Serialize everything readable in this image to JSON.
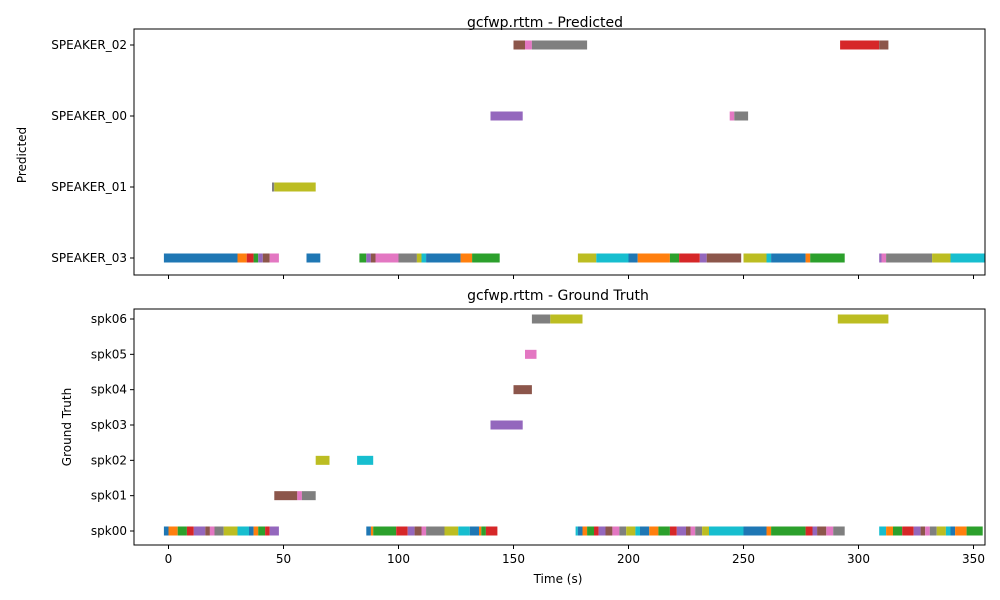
{
  "chart_data": [
    {
      "type": "timeline",
      "title": "gcfwp.rttm - Predicted",
      "ylabel": "Predicted",
      "xlabel": "",
      "xlim": [
        -15,
        355
      ],
      "xticks": [
        0,
        50,
        100,
        150,
        200,
        250,
        300,
        350
      ],
      "show_xtick_labels": false,
      "categories": [
        "SPEAKER_03",
        "SPEAKER_01",
        "SPEAKER_00",
        "SPEAKER_02"
      ],
      "segments": [
        {
          "speaker": "SPEAKER_03",
          "start": -2,
          "end": 30,
          "color": "#1f77b4"
        },
        {
          "speaker": "SPEAKER_03",
          "start": 30,
          "end": 34,
          "color": "#ff7f0e"
        },
        {
          "speaker": "SPEAKER_03",
          "start": 34,
          "end": 37,
          "color": "#d62728"
        },
        {
          "speaker": "SPEAKER_03",
          "start": 37,
          "end": 39,
          "color": "#2ca02c"
        },
        {
          "speaker": "SPEAKER_03",
          "start": 39,
          "end": 41,
          "color": "#9467bd"
        },
        {
          "speaker": "SPEAKER_03",
          "start": 41,
          "end": 44,
          "color": "#8c564b"
        },
        {
          "speaker": "SPEAKER_03",
          "start": 44,
          "end": 48,
          "color": "#e377c2"
        },
        {
          "speaker": "SPEAKER_03",
          "start": 60,
          "end": 66,
          "color": "#1f77b4"
        },
        {
          "speaker": "SPEAKER_03",
          "start": 83,
          "end": 86,
          "color": "#2ca02c"
        },
        {
          "speaker": "SPEAKER_03",
          "start": 86,
          "end": 88,
          "color": "#9467bd"
        },
        {
          "speaker": "SPEAKER_03",
          "start": 88,
          "end": 90,
          "color": "#8c564b"
        },
        {
          "speaker": "SPEAKER_03",
          "start": 90,
          "end": 100,
          "color": "#e377c2"
        },
        {
          "speaker": "SPEAKER_03",
          "start": 100,
          "end": 108,
          "color": "#7f7f7f"
        },
        {
          "speaker": "SPEAKER_03",
          "start": 108,
          "end": 110,
          "color": "#bcbd22"
        },
        {
          "speaker": "SPEAKER_03",
          "start": 110,
          "end": 112,
          "color": "#17becf"
        },
        {
          "speaker": "SPEAKER_03",
          "start": 112,
          "end": 127,
          "color": "#1f77b4"
        },
        {
          "speaker": "SPEAKER_03",
          "start": 127,
          "end": 132,
          "color": "#ff7f0e"
        },
        {
          "speaker": "SPEAKER_03",
          "start": 132,
          "end": 144,
          "color": "#2ca02c"
        },
        {
          "speaker": "SPEAKER_03",
          "start": 178,
          "end": 186,
          "color": "#bcbd22"
        },
        {
          "speaker": "SPEAKER_03",
          "start": 186,
          "end": 200,
          "color": "#17becf"
        },
        {
          "speaker": "SPEAKER_03",
          "start": 200,
          "end": 204,
          "color": "#1f77b4"
        },
        {
          "speaker": "SPEAKER_03",
          "start": 204,
          "end": 218,
          "color": "#ff7f0e"
        },
        {
          "speaker": "SPEAKER_03",
          "start": 218,
          "end": 222,
          "color": "#2ca02c"
        },
        {
          "speaker": "SPEAKER_03",
          "start": 222,
          "end": 231,
          "color": "#d62728"
        },
        {
          "speaker": "SPEAKER_03",
          "start": 231,
          "end": 234,
          "color": "#9467bd"
        },
        {
          "speaker": "SPEAKER_03",
          "start": 234,
          "end": 249,
          "color": "#8c564b"
        },
        {
          "speaker": "SPEAKER_03",
          "start": 250,
          "end": 260,
          "color": "#bcbd22"
        },
        {
          "speaker": "SPEAKER_03",
          "start": 260,
          "end": 262,
          "color": "#17becf"
        },
        {
          "speaker": "SPEAKER_03",
          "start": 262,
          "end": 277,
          "color": "#1f77b4"
        },
        {
          "speaker": "SPEAKER_03",
          "start": 277,
          "end": 279,
          "color": "#ff7f0e"
        },
        {
          "speaker": "SPEAKER_03",
          "start": 279,
          "end": 294,
          "color": "#2ca02c"
        },
        {
          "speaker": "SPEAKER_03",
          "start": 309,
          "end": 310,
          "color": "#9467bd"
        },
        {
          "speaker": "SPEAKER_03",
          "start": 310,
          "end": 312,
          "color": "#e377c2"
        },
        {
          "speaker": "SPEAKER_03",
          "start": 312,
          "end": 332,
          "color": "#7f7f7f"
        },
        {
          "speaker": "SPEAKER_03",
          "start": 332,
          "end": 340,
          "color": "#bcbd22"
        },
        {
          "speaker": "SPEAKER_03",
          "start": 340,
          "end": 355,
          "color": "#17becf"
        },
        {
          "speaker": "SPEAKER_01",
          "start": 45,
          "end": 46,
          "color": "#7f7f7f"
        },
        {
          "speaker": "SPEAKER_01",
          "start": 46,
          "end": 64,
          "color": "#bcbd22"
        },
        {
          "speaker": "SPEAKER_00",
          "start": 140,
          "end": 154,
          "color": "#9467bd"
        },
        {
          "speaker": "SPEAKER_00",
          "start": 244,
          "end": 246,
          "color": "#e377c2"
        },
        {
          "speaker": "SPEAKER_00",
          "start": 246,
          "end": 252,
          "color": "#7f7f7f"
        },
        {
          "speaker": "SPEAKER_02",
          "start": 150,
          "end": 155,
          "color": "#8c564b"
        },
        {
          "speaker": "SPEAKER_02",
          "start": 155,
          "end": 158,
          "color": "#e377c2"
        },
        {
          "speaker": "SPEAKER_02",
          "start": 158,
          "end": 182,
          "color": "#7f7f7f"
        },
        {
          "speaker": "SPEAKER_02",
          "start": 292,
          "end": 309,
          "color": "#d62728"
        },
        {
          "speaker": "SPEAKER_02",
          "start": 309,
          "end": 313,
          "color": "#8c564b"
        }
      ]
    },
    {
      "type": "timeline",
      "title": "gcfwp.rttm - Ground Truth",
      "ylabel": "Ground Truth",
      "xlabel": "Time (s)",
      "xlim": [
        -15,
        355
      ],
      "xticks": [
        0,
        50,
        100,
        150,
        200,
        250,
        300,
        350
      ],
      "show_xtick_labels": true,
      "categories": [
        "spk00",
        "spk01",
        "spk02",
        "spk03",
        "spk04",
        "spk05",
        "spk06"
      ],
      "segments": [
        {
          "speaker": "spk00",
          "start": -2,
          "end": 0,
          "color": "#1f77b4"
        },
        {
          "speaker": "spk00",
          "start": 0,
          "end": 4,
          "color": "#ff7f0e"
        },
        {
          "speaker": "spk00",
          "start": 4,
          "end": 8,
          "color": "#2ca02c"
        },
        {
          "speaker": "spk00",
          "start": 8,
          "end": 11,
          "color": "#d62728"
        },
        {
          "speaker": "spk00",
          "start": 11,
          "end": 16,
          "color": "#9467bd"
        },
        {
          "speaker": "spk00",
          "start": 16,
          "end": 18,
          "color": "#8c564b"
        },
        {
          "speaker": "spk00",
          "start": 18,
          "end": 20,
          "color": "#e377c2"
        },
        {
          "speaker": "spk00",
          "start": 20,
          "end": 24,
          "color": "#7f7f7f"
        },
        {
          "speaker": "spk00",
          "start": 24,
          "end": 30,
          "color": "#bcbd22"
        },
        {
          "speaker": "spk00",
          "start": 30,
          "end": 35,
          "color": "#17becf"
        },
        {
          "speaker": "spk00",
          "start": 35,
          "end": 37,
          "color": "#1f77b4"
        },
        {
          "speaker": "spk00",
          "start": 37,
          "end": 39,
          "color": "#ff7f0e"
        },
        {
          "speaker": "spk00",
          "start": 39,
          "end": 42,
          "color": "#2ca02c"
        },
        {
          "speaker": "spk00",
          "start": 42,
          "end": 44,
          "color": "#d62728"
        },
        {
          "speaker": "spk00",
          "start": 44,
          "end": 48,
          "color": "#9467bd"
        },
        {
          "speaker": "spk00",
          "start": 86,
          "end": 88,
          "color": "#1f77b4"
        },
        {
          "speaker": "spk00",
          "start": 88,
          "end": 89,
          "color": "#ff7f0e"
        },
        {
          "speaker": "spk00",
          "start": 89,
          "end": 99,
          "color": "#2ca02c"
        },
        {
          "speaker": "spk00",
          "start": 99,
          "end": 104,
          "color": "#d62728"
        },
        {
          "speaker": "spk00",
          "start": 104,
          "end": 107,
          "color": "#9467bd"
        },
        {
          "speaker": "spk00",
          "start": 107,
          "end": 110,
          "color": "#8c564b"
        },
        {
          "speaker": "spk00",
          "start": 110,
          "end": 112,
          "color": "#e377c2"
        },
        {
          "speaker": "spk00",
          "start": 112,
          "end": 120,
          "color": "#7f7f7f"
        },
        {
          "speaker": "spk00",
          "start": 120,
          "end": 126,
          "color": "#bcbd22"
        },
        {
          "speaker": "spk00",
          "start": 126,
          "end": 131,
          "color": "#17becf"
        },
        {
          "speaker": "spk00",
          "start": 131,
          "end": 135,
          "color": "#1f77b4"
        },
        {
          "speaker": "spk00",
          "start": 135,
          "end": 136,
          "color": "#ff7f0e"
        },
        {
          "speaker": "spk00",
          "start": 136,
          "end": 138,
          "color": "#2ca02c"
        },
        {
          "speaker": "spk00",
          "start": 138,
          "end": 143,
          "color": "#d62728"
        },
        {
          "speaker": "spk00",
          "start": 177,
          "end": 178,
          "color": "#17becf"
        },
        {
          "speaker": "spk00",
          "start": 178,
          "end": 180,
          "color": "#1f77b4"
        },
        {
          "speaker": "spk00",
          "start": 180,
          "end": 182,
          "color": "#ff7f0e"
        },
        {
          "speaker": "spk00",
          "start": 182,
          "end": 185,
          "color": "#2ca02c"
        },
        {
          "speaker": "spk00",
          "start": 185,
          "end": 187,
          "color": "#d62728"
        },
        {
          "speaker": "spk00",
          "start": 187,
          "end": 190,
          "color": "#9467bd"
        },
        {
          "speaker": "spk00",
          "start": 190,
          "end": 193,
          "color": "#8c564b"
        },
        {
          "speaker": "spk00",
          "start": 193,
          "end": 196,
          "color": "#e377c2"
        },
        {
          "speaker": "spk00",
          "start": 196,
          "end": 199,
          "color": "#7f7f7f"
        },
        {
          "speaker": "spk00",
          "start": 199,
          "end": 203,
          "color": "#bcbd22"
        },
        {
          "speaker": "spk00",
          "start": 203,
          "end": 205,
          "color": "#17becf"
        },
        {
          "speaker": "spk00",
          "start": 205,
          "end": 209,
          "color": "#1f77b4"
        },
        {
          "speaker": "spk00",
          "start": 209,
          "end": 213,
          "color": "#ff7f0e"
        },
        {
          "speaker": "spk00",
          "start": 213,
          "end": 218,
          "color": "#2ca02c"
        },
        {
          "speaker": "spk00",
          "start": 218,
          "end": 221,
          "color": "#d62728"
        },
        {
          "speaker": "spk00",
          "start": 221,
          "end": 225,
          "color": "#9467bd"
        },
        {
          "speaker": "spk00",
          "start": 225,
          "end": 227,
          "color": "#8c564b"
        },
        {
          "speaker": "spk00",
          "start": 227,
          "end": 229,
          "color": "#e377c2"
        },
        {
          "speaker": "spk00",
          "start": 229,
          "end": 232,
          "color": "#7f7f7f"
        },
        {
          "speaker": "spk00",
          "start": 232,
          "end": 235,
          "color": "#bcbd22"
        },
        {
          "speaker": "spk00",
          "start": 235,
          "end": 250,
          "color": "#17becf"
        },
        {
          "speaker": "spk00",
          "start": 250,
          "end": 260,
          "color": "#1f77b4"
        },
        {
          "speaker": "spk00",
          "start": 260,
          "end": 262,
          "color": "#ff7f0e"
        },
        {
          "speaker": "spk00",
          "start": 262,
          "end": 277,
          "color": "#2ca02c"
        },
        {
          "speaker": "spk00",
          "start": 277,
          "end": 280,
          "color": "#d62728"
        },
        {
          "speaker": "spk00",
          "start": 280,
          "end": 282,
          "color": "#9467bd"
        },
        {
          "speaker": "spk00",
          "start": 282,
          "end": 286,
          "color": "#8c564b"
        },
        {
          "speaker": "spk00",
          "start": 286,
          "end": 289,
          "color": "#e377c2"
        },
        {
          "speaker": "spk00",
          "start": 289,
          "end": 294,
          "color": "#7f7f7f"
        },
        {
          "speaker": "spk00",
          "start": 309,
          "end": 312,
          "color": "#17becf"
        },
        {
          "speaker": "spk00",
          "start": 312,
          "end": 315,
          "color": "#ff7f0e"
        },
        {
          "speaker": "spk00",
          "start": 315,
          "end": 319,
          "color": "#2ca02c"
        },
        {
          "speaker": "spk00",
          "start": 319,
          "end": 324,
          "color": "#d62728"
        },
        {
          "speaker": "spk00",
          "start": 324,
          "end": 327,
          "color": "#9467bd"
        },
        {
          "speaker": "spk00",
          "start": 327,
          "end": 329,
          "color": "#8c564b"
        },
        {
          "speaker": "spk00",
          "start": 329,
          "end": 331,
          "color": "#e377c2"
        },
        {
          "speaker": "spk00",
          "start": 331,
          "end": 334,
          "color": "#7f7f7f"
        },
        {
          "speaker": "spk00",
          "start": 334,
          "end": 338,
          "color": "#bcbd22"
        },
        {
          "speaker": "spk00",
          "start": 338,
          "end": 340,
          "color": "#17becf"
        },
        {
          "speaker": "spk00",
          "start": 340,
          "end": 342,
          "color": "#1f77b4"
        },
        {
          "speaker": "spk00",
          "start": 342,
          "end": 347,
          "color": "#ff7f0e"
        },
        {
          "speaker": "spk00",
          "start": 347,
          "end": 354,
          "color": "#2ca02c"
        },
        {
          "speaker": "spk01",
          "start": 46,
          "end": 56,
          "color": "#8c564b"
        },
        {
          "speaker": "spk01",
          "start": 56,
          "end": 58,
          "color": "#e377c2"
        },
        {
          "speaker": "spk01",
          "start": 58,
          "end": 64,
          "color": "#7f7f7f"
        },
        {
          "speaker": "spk02",
          "start": 64,
          "end": 70,
          "color": "#bcbd22"
        },
        {
          "speaker": "spk02",
          "start": 82,
          "end": 89,
          "color": "#17becf"
        },
        {
          "speaker": "spk03",
          "start": 140,
          "end": 154,
          "color": "#9467bd"
        },
        {
          "speaker": "spk04",
          "start": 150,
          "end": 158,
          "color": "#8c564b"
        },
        {
          "speaker": "spk05",
          "start": 155,
          "end": 160,
          "color": "#e377c2"
        },
        {
          "speaker": "spk06",
          "start": 158,
          "end": 166,
          "color": "#7f7f7f"
        },
        {
          "speaker": "spk06",
          "start": 166,
          "end": 180,
          "color": "#bcbd22"
        },
        {
          "speaker": "spk06",
          "start": 291,
          "end": 313,
          "color": "#bcbd22"
        }
      ]
    }
  ]
}
